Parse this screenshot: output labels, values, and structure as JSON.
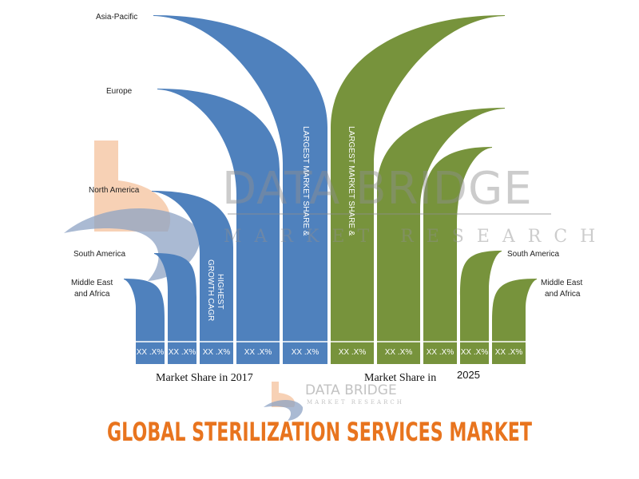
{
  "chart_data": {
    "type": "bar",
    "title": "GLOBAL STERILIZATION SERVICES MARKET",
    "colors": {
      "year_2017": "#4f81bd",
      "year_2025": "#77933c",
      "title": "#e8741e",
      "logo_orange": "#f6c9a8",
      "logo_gray": "#8ea3c4"
    },
    "left": {
      "caption": "Market Share in 2017",
      "categories": [
        "Middle East and Africa",
        "South America",
        "North America",
        "Europe",
        "Asia-Pacific"
      ],
      "values": [
        "XX .X%",
        "XX .X%",
        "XX .X%",
        "XX .X%",
        "XX .X%"
      ]
    },
    "right": {
      "caption_text": "Market Share in",
      "caption_year": "2025",
      "categories": [
        "Asia-Pacific",
        "Europe",
        "North America",
        "South America",
        "Middle East and Africa"
      ],
      "values": [
        "XX .X%",
        "XX .X%",
        "XX .X%",
        "XX .X%",
        "XX .X%"
      ]
    },
    "region_labels": {
      "asia_pacific": "Asia-Pacific",
      "europe": "Europe",
      "north_america": "North America",
      "south_america_left": "South America",
      "mea_left_line1": "Middle East",
      "mea_left_line2": "and Africa",
      "south_america_right": "South America",
      "mea_right_line1": "Middle East",
      "mea_right_line2": "and Africa"
    },
    "annotations": {
      "largest_left": "LARGEST MARKET SHARE &",
      "largest_right": "LARGEST MARKET SHARE &",
      "highest_line1": "HIGHEST",
      "highest_line2": "GROWTH CAGR"
    },
    "watermark": {
      "brand": "DATA BRIDGE",
      "sub": "MARKET RESEARCH",
      "brand_small": "DATA BRIDGE",
      "sub_small": "MARKET RESEARCH"
    }
  }
}
